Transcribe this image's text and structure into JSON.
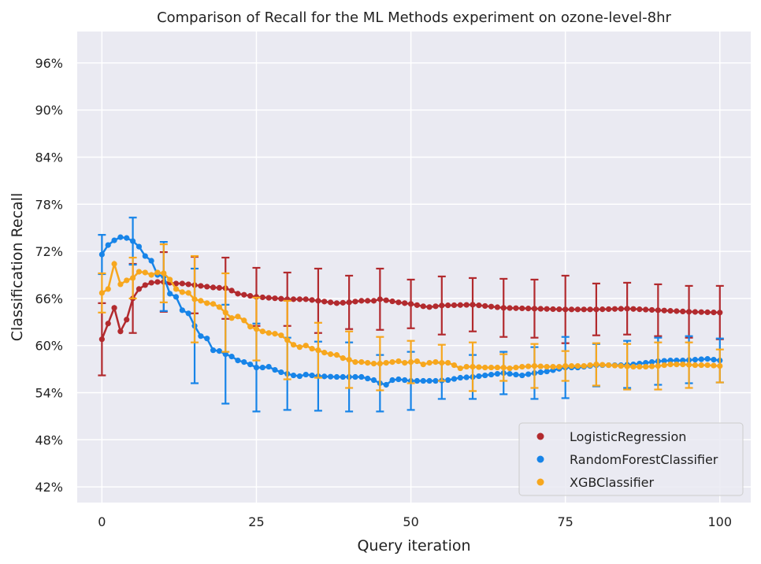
{
  "chart_data": {
    "type": "line",
    "title": "Comparison of Recall for the ML Methods experiment on ozone-level-8hr",
    "xlabel": "Query iteration",
    "ylabel": "Classification Recall",
    "xlim": [
      -4,
      105
    ],
    "ylim": [
      0.4,
      1.0
    ],
    "xticks": [
      0,
      25,
      50,
      75,
      100
    ],
    "xtick_labels": [
      "0",
      "25",
      "50",
      "75",
      "100"
    ],
    "yticks": [
      0.42,
      0.48,
      0.54,
      0.6,
      0.66,
      0.72,
      0.78,
      0.84,
      0.9,
      0.96
    ],
    "ytick_labels": [
      "42%",
      "48%",
      "54%",
      "60%",
      "66%",
      "72%",
      "78%",
      "84%",
      "90%",
      "96%"
    ],
    "grid": true,
    "legend_position": "bottom-right",
    "series": [
      {
        "name": "LogisticRegression",
        "color": "#b22a2e",
        "anchors": [
          [
            0,
            0.608
          ],
          [
            1,
            0.628
          ],
          [
            2,
            0.648
          ],
          [
            3,
            0.618
          ],
          [
            4,
            0.633
          ],
          [
            5,
            0.66
          ],
          [
            6,
            0.672
          ],
          [
            7,
            0.677
          ],
          [
            8,
            0.68
          ],
          [
            9,
            0.681
          ],
          [
            10,
            0.681
          ],
          [
            11,
            0.68
          ],
          [
            12,
            0.679
          ],
          [
            13,
            0.679
          ],
          [
            14,
            0.678
          ],
          [
            15,
            0.677
          ],
          [
            18,
            0.674
          ],
          [
            20,
            0.673
          ],
          [
            21,
            0.67
          ],
          [
            22,
            0.666
          ],
          [
            25,
            0.662
          ],
          [
            30,
            0.659
          ],
          [
            33,
            0.659
          ],
          [
            36,
            0.656
          ],
          [
            38,
            0.654
          ],
          [
            40,
            0.655
          ],
          [
            42,
            0.657
          ],
          [
            44,
            0.657
          ],
          [
            45,
            0.659
          ],
          [
            48,
            0.655
          ],
          [
            50,
            0.653
          ],
          [
            52,
            0.65
          ],
          [
            53,
            0.649
          ],
          [
            55,
            0.651
          ],
          [
            60,
            0.652
          ],
          [
            65,
            0.648
          ],
          [
            70,
            0.647
          ],
          [
            75,
            0.646
          ],
          [
            80,
            0.646
          ],
          [
            85,
            0.647
          ],
          [
            90,
            0.645
          ],
          [
            95,
            0.643
          ],
          [
            100,
            0.642
          ]
        ],
        "error_bars": [
          [
            0,
            0.608,
            0.046
          ],
          [
            5,
            0.66,
            0.044
          ],
          [
            10,
            0.681,
            0.038
          ],
          [
            15,
            0.677,
            0.036
          ],
          [
            20,
            0.673,
            0.039
          ],
          [
            25,
            0.662,
            0.037
          ],
          [
            30,
            0.659,
            0.034
          ],
          [
            35,
            0.657,
            0.041
          ],
          [
            40,
            0.655,
            0.034
          ],
          [
            45,
            0.659,
            0.039
          ],
          [
            50,
            0.653,
            0.031
          ],
          [
            55,
            0.651,
            0.037
          ],
          [
            60,
            0.652,
            0.034
          ],
          [
            65,
            0.648,
            0.037
          ],
          [
            70,
            0.647,
            0.037
          ],
          [
            75,
            0.646,
            0.043
          ],
          [
            80,
            0.646,
            0.033
          ],
          [
            85,
            0.647,
            0.033
          ],
          [
            90,
            0.645,
            0.033
          ],
          [
            95,
            0.643,
            0.033
          ],
          [
            100,
            0.642,
            0.034
          ]
        ]
      },
      {
        "name": "RandomForestClassifier",
        "color": "#1784e8",
        "anchors": [
          [
            0,
            0.716
          ],
          [
            1,
            0.728
          ],
          [
            2,
            0.734
          ],
          [
            3,
            0.738
          ],
          [
            4,
            0.737
          ],
          [
            5,
            0.733
          ],
          [
            6,
            0.726
          ],
          [
            7,
            0.714
          ],
          [
            8,
            0.708
          ],
          [
            9,
            0.69
          ],
          [
            10,
            0.688
          ],
          [
            11,
            0.666
          ],
          [
            12,
            0.662
          ],
          [
            13,
            0.645
          ],
          [
            14,
            0.641
          ],
          [
            15,
            0.625
          ],
          [
            16,
            0.612
          ],
          [
            17,
            0.609
          ],
          [
            18,
            0.594
          ],
          [
            19,
            0.593
          ],
          [
            20,
            0.589
          ],
          [
            21,
            0.586
          ],
          [
            22,
            0.581
          ],
          [
            23,
            0.579
          ],
          [
            24,
            0.576
          ],
          [
            25,
            0.572
          ],
          [
            26,
            0.572
          ],
          [
            27,
            0.573
          ],
          [
            28,
            0.569
          ],
          [
            29,
            0.566
          ],
          [
            30,
            0.564
          ],
          [
            31,
            0.562
          ],
          [
            32,
            0.561
          ],
          [
            33,
            0.563
          ],
          [
            34,
            0.562
          ],
          [
            35,
            0.561
          ],
          [
            38,
            0.56
          ],
          [
            40,
            0.56
          ],
          [
            42,
            0.56
          ],
          [
            44,
            0.556
          ],
          [
            45,
            0.552
          ],
          [
            46,
            0.55
          ],
          [
            47,
            0.556
          ],
          [
            48,
            0.557
          ],
          [
            50,
            0.555
          ],
          [
            52,
            0.555
          ],
          [
            54,
            0.555
          ],
          [
            56,
            0.556
          ],
          [
            58,
            0.559
          ],
          [
            60,
            0.56
          ],
          [
            63,
            0.563
          ],
          [
            65,
            0.565
          ],
          [
            66,
            0.564
          ],
          [
            67,
            0.563
          ],
          [
            68,
            0.562
          ],
          [
            70,
            0.565
          ],
          [
            72,
            0.567
          ],
          [
            75,
            0.572
          ],
          [
            77,
            0.572
          ],
          [
            78,
            0.573
          ],
          [
            80,
            0.575
          ],
          [
            82,
            0.575
          ],
          [
            84,
            0.575
          ],
          [
            86,
            0.576
          ],
          [
            88,
            0.578
          ],
          [
            90,
            0.58
          ],
          [
            92,
            0.581
          ],
          [
            94,
            0.581
          ],
          [
            96,
            0.582
          ],
          [
            98,
            0.583
          ],
          [
            100,
            0.581
          ]
        ],
        "error_bars": [
          [
            0,
            0.716,
            0.025
          ],
          [
            5,
            0.733,
            0.03
          ],
          [
            10,
            0.688,
            0.044
          ],
          [
            15,
            0.625,
            0.073
          ],
          [
            20,
            0.589,
            0.063
          ],
          [
            25,
            0.572,
            0.056
          ],
          [
            30,
            0.564,
            0.046
          ],
          [
            35,
            0.561,
            0.044
          ],
          [
            40,
            0.56,
            0.044
          ],
          [
            45,
            0.552,
            0.036
          ],
          [
            50,
            0.555,
            0.037
          ],
          [
            55,
            0.555,
            0.023
          ],
          [
            60,
            0.56,
            0.028
          ],
          [
            65,
            0.565,
            0.027
          ],
          [
            70,
            0.565,
            0.033
          ],
          [
            75,
            0.572,
            0.039
          ],
          [
            80,
            0.575,
            0.027
          ],
          [
            85,
            0.576,
            0.03
          ],
          [
            90,
            0.58,
            0.03
          ],
          [
            95,
            0.582,
            0.03
          ],
          [
            100,
            0.581,
            0.028
          ]
        ]
      },
      {
        "name": "XGBClassifier",
        "color": "#f7a71e",
        "anchors": [
          [
            0,
            0.667
          ],
          [
            1,
            0.672
          ],
          [
            2,
            0.704
          ],
          [
            3,
            0.678
          ],
          [
            4,
            0.683
          ],
          [
            5,
            0.686
          ],
          [
            6,
            0.694
          ],
          [
            7,
            0.693
          ],
          [
            8,
            0.69
          ],
          [
            9,
            0.693
          ],
          [
            10,
            0.692
          ],
          [
            11,
            0.684
          ],
          [
            12,
            0.672
          ],
          [
            13,
            0.668
          ],
          [
            14,
            0.667
          ],
          [
            15,
            0.659
          ],
          [
            16,
            0.657
          ],
          [
            17,
            0.654
          ],
          [
            18,
            0.653
          ],
          [
            19,
            0.649
          ],
          [
            20,
            0.642
          ],
          [
            21,
            0.635
          ],
          [
            22,
            0.637
          ],
          [
            23,
            0.632
          ],
          [
            24,
            0.624
          ],
          [
            25,
            0.621
          ],
          [
            26,
            0.618
          ],
          [
            27,
            0.616
          ],
          [
            28,
            0.615
          ],
          [
            29,
            0.613
          ],
          [
            30,
            0.607
          ],
          [
            31,
            0.601
          ],
          [
            32,
            0.598
          ],
          [
            33,
            0.6
          ],
          [
            34,
            0.596
          ],
          [
            35,
            0.594
          ],
          [
            36,
            0.591
          ],
          [
            37,
            0.589
          ],
          [
            38,
            0.588
          ],
          [
            39,
            0.584
          ],
          [
            40,
            0.582
          ],
          [
            41,
            0.579
          ],
          [
            42,
            0.579
          ],
          [
            43,
            0.578
          ],
          [
            44,
            0.577
          ],
          [
            45,
            0.577
          ],
          [
            46,
            0.578
          ],
          [
            47,
            0.579
          ],
          [
            48,
            0.58
          ],
          [
            49,
            0.578
          ],
          [
            50,
            0.579
          ],
          [
            51,
            0.58
          ],
          [
            52,
            0.576
          ],
          [
            53,
            0.578
          ],
          [
            54,
            0.579
          ],
          [
            55,
            0.578
          ],
          [
            56,
            0.578
          ],
          [
            57,
            0.575
          ],
          [
            58,
            0.571
          ],
          [
            59,
            0.573
          ],
          [
            60,
            0.573
          ],
          [
            62,
            0.572
          ],
          [
            64,
            0.572
          ],
          [
            65,
            0.572
          ],
          [
            66,
            0.571
          ],
          [
            67,
            0.572
          ],
          [
            68,
            0.573
          ],
          [
            70,
            0.574
          ],
          [
            72,
            0.573
          ],
          [
            74,
            0.573
          ],
          [
            75,
            0.574
          ],
          [
            78,
            0.574
          ],
          [
            80,
            0.576
          ],
          [
            82,
            0.575
          ],
          [
            84,
            0.574
          ],
          [
            86,
            0.573
          ],
          [
            88,
            0.573
          ],
          [
            90,
            0.574
          ],
          [
            92,
            0.576
          ],
          [
            94,
            0.576
          ],
          [
            96,
            0.575
          ],
          [
            98,
            0.575
          ],
          [
            100,
            0.574
          ]
        ],
        "error_bars": [
          [
            0,
            0.667,
            0.025
          ],
          [
            5,
            0.686,
            0.026
          ],
          [
            10,
            0.692,
            0.037
          ],
          [
            15,
            0.659,
            0.055
          ],
          [
            20,
            0.642,
            0.05
          ],
          [
            25,
            0.621,
            0.04
          ],
          [
            30,
            0.607,
            0.05
          ],
          [
            35,
            0.594,
            0.035
          ],
          [
            40,
            0.582,
            0.036
          ],
          [
            45,
            0.577,
            0.034
          ],
          [
            50,
            0.579,
            0.027
          ],
          [
            55,
            0.578,
            0.023
          ],
          [
            60,
            0.573,
            0.031
          ],
          [
            65,
            0.572,
            0.017
          ],
          [
            70,
            0.574,
            0.028
          ],
          [
            75,
            0.574,
            0.019
          ],
          [
            80,
            0.576,
            0.027
          ],
          [
            85,
            0.573,
            0.029
          ],
          [
            90,
            0.574,
            0.03
          ],
          [
            95,
            0.575,
            0.029
          ],
          [
            100,
            0.574,
            0.021
          ]
        ]
      }
    ]
  }
}
